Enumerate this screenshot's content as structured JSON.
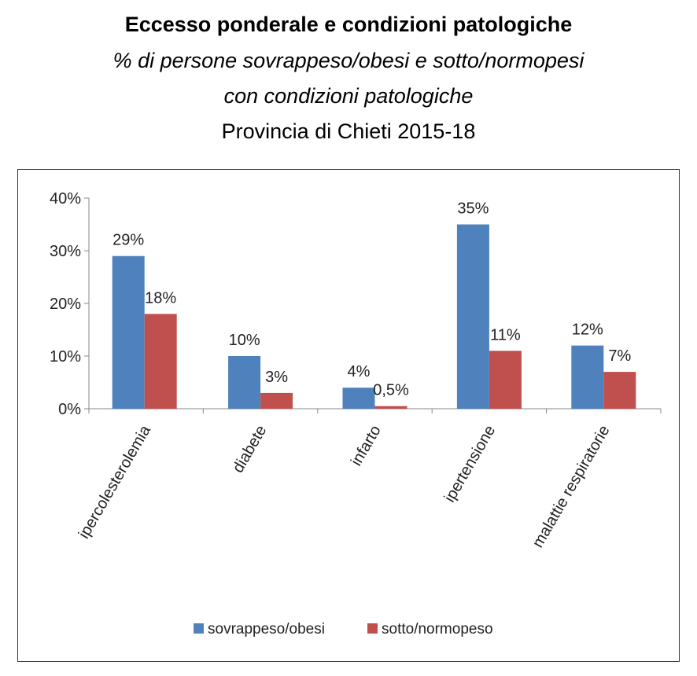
{
  "chart_data": {
    "type": "bar",
    "title": "Eccesso ponderale e condizioni patologiche",
    "subtitle_lines": [
      "% di persone sovrappeso/obesi e sotto/normopesi",
      "con condizioni patologiche"
    ],
    "subtitle2": "Provincia di Chieti 2015-18",
    "categories": [
      "ipercolesterolemia",
      "diabete",
      "infarto",
      "ipertensione",
      "malattie respiratorie"
    ],
    "series": [
      {
        "name": "sovrappeso/obesi",
        "color": "#4F81BD",
        "values": [
          29,
          10,
          4,
          35,
          12
        ],
        "labels": [
          "29%",
          "10%",
          "4%",
          "35%",
          "12%"
        ]
      },
      {
        "name": "sotto/normopeso",
        "color": "#C0504D",
        "values": [
          18,
          3,
          0.5,
          11,
          7
        ],
        "labels": [
          "18%",
          "3%",
          "0,5%",
          "11%",
          "7%"
        ]
      }
    ],
    "ylim": [
      0,
      40
    ],
    "yticks": [
      0,
      10,
      20,
      30,
      40
    ],
    "ytick_labels": [
      "0%",
      "10%",
      "20%",
      "30%",
      "40%"
    ],
    "xlabel": "",
    "ylabel": "",
    "grid": false,
    "legend_position": "bottom"
  }
}
